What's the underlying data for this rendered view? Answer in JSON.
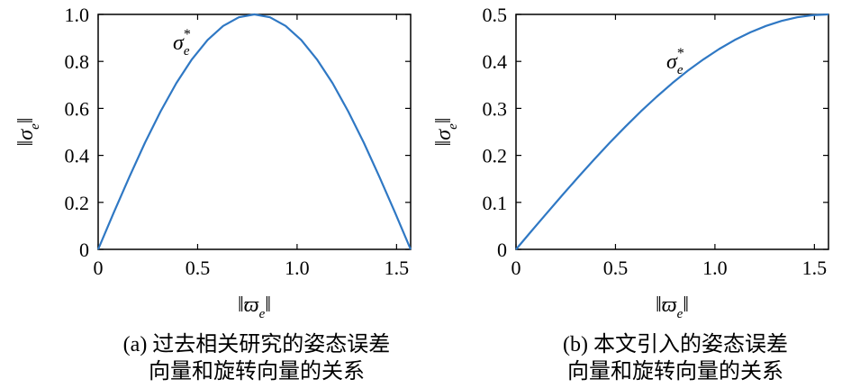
{
  "chart_data": [
    {
      "type": "line",
      "subfigure": "a",
      "caption_line1": "(a) 过去相关研究的姿态误差",
      "caption_line2": "向量和旋转向量的关系",
      "xlabel_main": "‖ϖ",
      "xlabel_sub": "e",
      "xlabel_end": "‖",
      "ylabel_main": "‖σ",
      "ylabel_sub": "e",
      "ylabel_end": "‖",
      "xlim": [
        0,
        1.5708
      ],
      "ylim": [
        0,
        1.0
      ],
      "xticks": [
        0,
        0.5,
        1.0,
        1.5
      ],
      "xtick_labels": [
        "0",
        "0.5",
        "1.0",
        "1.5"
      ],
      "yticks": [
        0,
        0.2,
        0.4,
        0.6,
        0.8,
        1.0
      ],
      "ytick_labels": [
        "0",
        "0.2",
        "0.4",
        "0.6",
        "0.8",
        "1.0"
      ],
      "grid": false,
      "line_color": "#2f78c4",
      "series": [
        {
          "name": "σ*e",
          "label_main": "σ",
          "label_sup": "*",
          "label_sub": "e",
          "x": [
            0,
            0.0785,
            0.1571,
            0.2356,
            0.3142,
            0.3927,
            0.4712,
            0.5498,
            0.6283,
            0.7069,
            0.7854,
            0.8639,
            0.9425,
            1.021,
            1.0996,
            1.1781,
            1.2566,
            1.3352,
            1.4137,
            1.4923,
            1.5708
          ],
          "y": [
            0,
            0.1564,
            0.309,
            0.454,
            0.5878,
            0.7071,
            0.809,
            0.891,
            0.9511,
            0.9877,
            1.0,
            0.9877,
            0.9511,
            0.891,
            0.809,
            0.7071,
            0.5878,
            0.454,
            0.309,
            0.1564,
            0
          ]
        }
      ]
    },
    {
      "type": "line",
      "subfigure": "b",
      "caption_line1": "(b) 本文引入的姿态误差",
      "caption_line2": "向量和旋转向量的关系",
      "xlabel_main": "‖ϖ",
      "xlabel_sub": "e",
      "xlabel_end": "‖",
      "ylabel_main": "‖σ",
      "ylabel_sub": "e",
      "ylabel_end": "‖",
      "xlim": [
        0,
        1.5708
      ],
      "ylim": [
        0,
        0.5
      ],
      "xticks": [
        0,
        0.5,
        1.0,
        1.5
      ],
      "xtick_labels": [
        "0",
        "0.5",
        "1.0",
        "1.5"
      ],
      "yticks": [
        0,
        0.1,
        0.2,
        0.3,
        0.4,
        0.5
      ],
      "ytick_labels": [
        "0",
        "0.1",
        "0.2",
        "0.3",
        "0.4",
        "0.5"
      ],
      "grid": false,
      "line_color": "#2f78c4",
      "series": [
        {
          "name": "σ*e",
          "label_main": "σ",
          "label_sup": "*",
          "label_sub": "e",
          "x": [
            0,
            0.0785,
            0.1571,
            0.2356,
            0.3142,
            0.3927,
            0.4712,
            0.5498,
            0.6283,
            0.7069,
            0.7854,
            0.8639,
            0.9425,
            1.021,
            1.0996,
            1.1781,
            1.2566,
            1.3352,
            1.4137,
            1.4923,
            1.5708
          ],
          "y": [
            0,
            0.0392,
            0.0782,
            0.1167,
            0.1545,
            0.1913,
            0.227,
            0.2612,
            0.2939,
            0.3247,
            0.3536,
            0.3802,
            0.4045,
            0.4263,
            0.4455,
            0.4619,
            0.4755,
            0.4862,
            0.4938,
            0.4985,
            0.5
          ]
        }
      ]
    }
  ]
}
